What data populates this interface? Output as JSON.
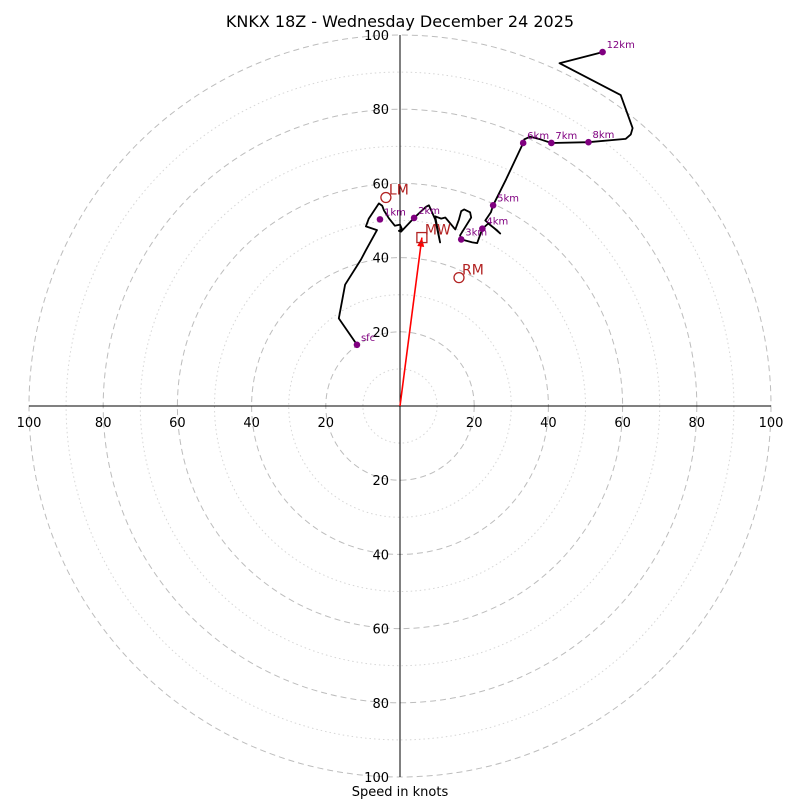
{
  "chart_data": {
    "type": "hodograph",
    "title": "KNKX 18Z - Wednesday December 24 2025",
    "xlabel": "Speed in knots",
    "units": "knots",
    "range": [
      -100,
      100
    ],
    "ring_major": [
      20,
      40,
      60,
      80,
      100
    ],
    "ring_minor": [
      10,
      30,
      50,
      70,
      90
    ],
    "x_ticks": [
      {
        "v": -100,
        "t": "100"
      },
      {
        "v": -80,
        "t": "80"
      },
      {
        "v": -60,
        "t": "60"
      },
      {
        "v": -40,
        "t": "40"
      },
      {
        "v": -20,
        "t": "20"
      },
      {
        "v": 20,
        "t": "20"
      },
      {
        "v": 40,
        "t": "40"
      },
      {
        "v": 60,
        "t": "60"
      },
      {
        "v": 80,
        "t": "80"
      },
      {
        "v": 100,
        "t": "100"
      }
    ],
    "y_ticks": [
      {
        "v": 100,
        "t": "100"
      },
      {
        "v": 80,
        "t": "80"
      },
      {
        "v": 60,
        "t": "60"
      },
      {
        "v": 40,
        "t": "40"
      },
      {
        "v": 20,
        "t": "20"
      },
      {
        "v": -20,
        "t": "20"
      },
      {
        "v": -40,
        "t": "40"
      },
      {
        "v": -60,
        "t": "60"
      },
      {
        "v": -80,
        "t": "80"
      },
      {
        "v": -100,
        "t": "100"
      }
    ],
    "trace": [
      [
        -11.6,
        16.5
      ],
      [
        -16.5,
        23.6
      ],
      [
        -14.8,
        32.7
      ],
      [
        -10.5,
        39.5
      ],
      [
        -9.2,
        42.0
      ],
      [
        -6.2,
        47.4
      ],
      [
        -9.2,
        48.4
      ],
      [
        -8.4,
        50.5
      ],
      [
        -5.7,
        54.6
      ],
      [
        -4.8,
        54.0
      ],
      [
        -4.3,
        52.7
      ],
      [
        -3.0,
        50.6
      ],
      [
        -1.4,
        48.6
      ],
      [
        0.0,
        48.9
      ],
      [
        0.5,
        47.7
      ],
      [
        -0.3,
        47.2
      ],
      [
        0.3,
        47.0
      ],
      [
        3.8,
        50.7
      ],
      [
        7.0,
        53.7
      ],
      [
        7.8,
        54.1
      ],
      [
        9.5,
        50.3
      ],
      [
        10.8,
        44.1
      ],
      [
        9.5,
        51.1
      ],
      [
        11.1,
        50.5
      ],
      [
        12.2,
        50.8
      ],
      [
        14.9,
        47.6
      ],
      [
        15.9,
        50.3
      ],
      [
        16.5,
        52.5
      ],
      [
        17.3,
        53.0
      ],
      [
        18.9,
        52.2
      ],
      [
        19.2,
        50.8
      ],
      [
        16.2,
        46.0
      ],
      [
        16.5,
        44.9
      ],
      [
        19.5,
        44.1
      ],
      [
        20.8,
        43.9
      ],
      [
        22.2,
        47.8
      ],
      [
        23.8,
        49.2
      ],
      [
        26.2,
        47.3
      ],
      [
        27.0,
        46.5
      ],
      [
        23.0,
        50.0
      ],
      [
        24.5,
        52.2
      ],
      [
        25.1,
        54.1
      ],
      [
        28.6,
        61.1
      ],
      [
        33.2,
        70.9
      ],
      [
        33.5,
        71.9
      ],
      [
        35.1,
        72.6
      ],
      [
        37.8,
        71.9
      ],
      [
        40.8,
        70.9
      ],
      [
        50.8,
        71.1
      ],
      [
        60.8,
        72.0
      ],
      [
        62.2,
        73.2
      ],
      [
        62.7,
        74.9
      ],
      [
        59.5,
        83.8
      ],
      [
        43.0,
        92.4
      ],
      [
        54.6,
        95.4
      ]
    ],
    "height_points": [
      {
        "label": "sfc",
        "u": -11.6,
        "v": 16.5
      },
      {
        "label": "1km",
        "u": -5.4,
        "v": 50.3
      },
      {
        "label": "2km",
        "u": 3.8,
        "v": 50.7
      },
      {
        "label": "3km",
        "u": 16.5,
        "v": 44.9
      },
      {
        "label": "4km",
        "u": 22.2,
        "v": 47.8
      },
      {
        "label": "5km",
        "u": 25.1,
        "v": 54.1
      },
      {
        "label": "6km",
        "u": 33.2,
        "v": 70.9
      },
      {
        "label": "7km",
        "u": 40.8,
        "v": 70.9
      },
      {
        "label": "8km",
        "u": 50.8,
        "v": 71.1
      },
      {
        "label": "12km",
        "u": 54.6,
        "v": 95.4
      }
    ],
    "storm_motion": [
      {
        "label": "LM",
        "u": -3.8,
        "v": 56.2,
        "marker": "circle"
      },
      {
        "label": "MW",
        "u": 5.9,
        "v": 45.4,
        "marker": "square"
      },
      {
        "label": "RM",
        "u": 15.9,
        "v": 34.6,
        "marker": "circle"
      }
    ],
    "mean_wind_vector": {
      "u": 5.9,
      "v": 45.4
    },
    "colors": {
      "trace": "#000000",
      "height_points": "#800080",
      "storm_motion": "#b22222",
      "vector": "#ff0000",
      "ring_major": "#bdbdbd",
      "ring_minor": "#d6d6d6"
    }
  }
}
